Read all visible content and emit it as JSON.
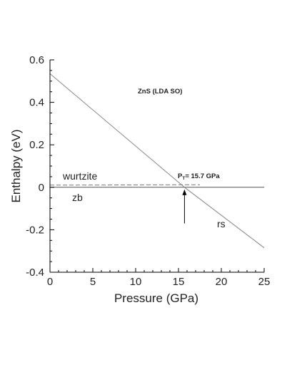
{
  "chart_data": {
    "type": "line",
    "title": "ZnS (LDA SO)",
    "xlabel": "Pressure (GPa)",
    "ylabel": "Enthalpy (eV)",
    "xlim": [
      0,
      25
    ],
    "ylim": [
      -0.4,
      0.6
    ],
    "x_ticks": [
      0,
      5,
      10,
      15,
      20,
      25
    ],
    "x_tick_labels": [
      "0",
      "5",
      "10",
      "15",
      "20",
      "25"
    ],
    "y_ticks": [
      -0.4,
      -0.2,
      0,
      0.2,
      0.4,
      0.6
    ],
    "y_tick_labels": [
      "-0.4",
      "-0.2",
      "0",
      "0.2",
      "0.4",
      "0.6"
    ],
    "grid": false,
    "legend": "none",
    "series": [
      {
        "name": "zb",
        "style": "solid",
        "color": "#555555",
        "x": [
          0,
          25
        ],
        "y": [
          0,
          0
        ]
      },
      {
        "name": "wurtzite",
        "style": "dashed",
        "color": "#777777",
        "x": [
          0,
          17.5
        ],
        "y": [
          0.01,
          0.012
        ]
      },
      {
        "name": "rs",
        "style": "solid",
        "color": "#888888",
        "x": [
          0,
          15.7,
          25
        ],
        "y": [
          0.535,
          0,
          -0.285
        ]
      }
    ],
    "annotations": {
      "transition_prefix": "P",
      "transition_subscript": "T",
      "transition_value": "= 15.7 GPa",
      "transition_pressure": 15.7,
      "arrow_from_y": -0.17,
      "arrow_to_y": -0.01
    }
  }
}
